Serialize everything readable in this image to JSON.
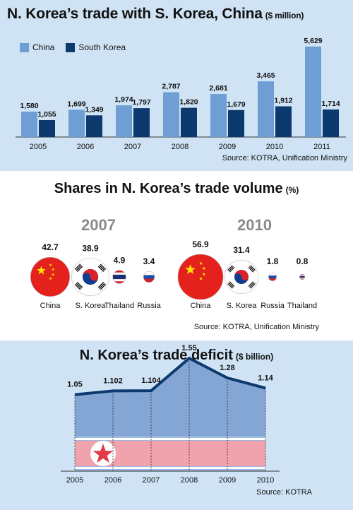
{
  "colors": {
    "china": "#6e9ed4",
    "south_korea": "#0d3a6e",
    "panel_bg": "#cfe3f5",
    "line": "#0d3a6e"
  },
  "chart1": {
    "title": "N. Korea’s trade with S. Korea, China",
    "unit": "($ million)",
    "source": "Source: KOTRA, Unification Ministry",
    "chart_data": {
      "type": "bar",
      "categories": [
        "2005",
        "2006",
        "2007",
        "2008",
        "2009",
        "2010",
        "2011"
      ],
      "series": [
        {
          "name": "China",
          "values": [
            1580,
            1699,
            1974,
            2787,
            2681,
            3465,
            5629
          ]
        },
        {
          "name": "South Korea",
          "values": [
            1055,
            1349,
            1797,
            1820,
            1679,
            1912,
            1714
          ]
        }
      ],
      "value_labels": {
        "China": [
          "1,580",
          "1,699",
          "1,974",
          "2,787",
          "2,681",
          "3,465",
          "5,629"
        ],
        "South Korea": [
          "1,055",
          "1,349",
          "1,797",
          "1,820",
          "1,679",
          "1,912",
          "1,714"
        ]
      },
      "ylim": [
        0,
        5800
      ]
    }
  },
  "chart2": {
    "title": "Shares in N. Korea’s trade volume",
    "unit": "(%)",
    "source": "Source: KOTRA, Unification Ministry",
    "chart_data": [
      {
        "type": "bubble",
        "year": "2007",
        "categories": [
          "China",
          "S. Korea",
          "Thailand",
          "Russia"
        ],
        "values": [
          42.7,
          38.9,
          4.9,
          3.4
        ],
        "value_labels": [
          "42.7",
          "38.9",
          "4.9",
          "3.4"
        ],
        "flags": [
          "china-flag",
          "south-korea-flag",
          "thailand-flag",
          "russia-flag"
        ]
      },
      {
        "type": "bubble",
        "year": "2010",
        "categories": [
          "China",
          "S. Korea",
          "Russia",
          "Thailand"
        ],
        "values": [
          56.9,
          31.4,
          1.8,
          0.8
        ],
        "value_labels": [
          "56.9",
          "31.4",
          "1.8",
          "0.8"
        ],
        "flags": [
          "china-flag",
          "south-korea-flag",
          "russia-flag",
          "thailand-flag"
        ]
      }
    ]
  },
  "chart3": {
    "title": "N. Korea’s trade deficit",
    "unit": "($ billion)",
    "source": "Source: KOTRA",
    "chart_data": {
      "type": "area",
      "categories": [
        "2005",
        "2006",
        "2007",
        "2008",
        "2009",
        "2010"
      ],
      "values": [
        1.05,
        1.102,
        1.104,
        1.55,
        1.28,
        1.14
      ],
      "value_labels": [
        "1.05",
        "1.102",
        "1.104",
        "1.55",
        "1.28",
        "1.14"
      ],
      "background": "north-korea-flag",
      "ylim": [
        0,
        1.6
      ]
    }
  }
}
